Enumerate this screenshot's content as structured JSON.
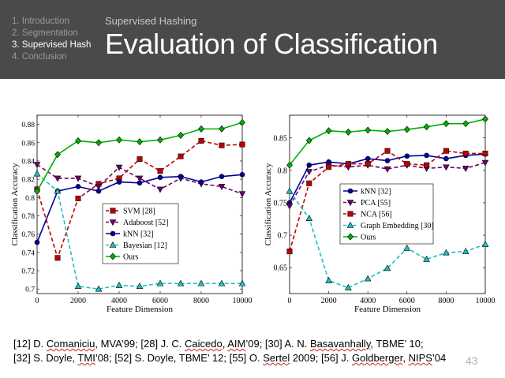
{
  "nav": {
    "items": [
      {
        "num": "1.",
        "label": "Introduction",
        "active": false
      },
      {
        "num": "2.",
        "label": "Segmentation",
        "active": false
      },
      {
        "num": "3.",
        "label": "Supervised Hash",
        "active": true
      },
      {
        "num": "4.",
        "label": "Conclusion",
        "active": false
      }
    ]
  },
  "section_label": "Supervised Hashing",
  "slide_title": "Evaluation of Classification",
  "colors": {
    "header_bg": "#4a4a4a",
    "green": "#00b000",
    "red": "#c00000",
    "purple": "#700070",
    "blue": "#0000a0",
    "cyan": "#20c0c0"
  },
  "chart_data": [
    {
      "type": "line",
      "xlabel": "Feature Dimension",
      "ylabel": "Classification Accuracy",
      "xlim": [
        0,
        10000
      ],
      "ylim": [
        0.695,
        0.89
      ],
      "xticks": [
        "0",
        "2000",
        "4000",
        "6000",
        "8000",
        "10000"
      ],
      "yticks": [
        "0.7",
        "0.72",
        "0.74",
        "0.76",
        "0.78",
        "0.8",
        "0.82",
        "0.84",
        "0.86",
        "0.88"
      ],
      "grid": false,
      "legend_position": "center-right",
      "x": [
        0,
        1000,
        2000,
        3000,
        4000,
        5000,
        6000,
        7000,
        8000,
        9000,
        10000
      ],
      "series": [
        {
          "name": "SVM [28]",
          "values": [
            0.809,
            0.734,
            0.799,
            0.815,
            0.821,
            0.842,
            0.829,
            0.845,
            0.862,
            0.857,
            0.858
          ]
        },
        {
          "name": "Adaboost [52]",
          "values": [
            0.836,
            0.821,
            0.821,
            0.812,
            0.833,
            0.821,
            0.809,
            0.821,
            0.815,
            0.812,
            0.804
          ]
        },
        {
          "name": "kNN [32]",
          "values": [
            0.751,
            0.807,
            0.812,
            0.807,
            0.817,
            0.816,
            0.822,
            0.823,
            0.817,
            0.823,
            0.825
          ]
        },
        {
          "name": "Bayesian [12]",
          "values": [
            0.826,
            0.807,
            0.703,
            0.7,
            0.704,
            0.703,
            0.706,
            0.706,
            0.706,
            0.706,
            0.706
          ]
        },
        {
          "name": "Ours",
          "values": [
            0.807,
            0.847,
            0.862,
            0.86,
            0.863,
            0.861,
            0.863,
            0.868,
            0.875,
            0.875,
            0.882
          ]
        }
      ]
    },
    {
      "type": "line",
      "xlabel": "Feature Dimension",
      "ylabel": "Classification Accuracy",
      "xlim": [
        0,
        10000
      ],
      "ylim": [
        0.61,
        0.885
      ],
      "xticks": [
        "0",
        "2000",
        "4000",
        "6000",
        "8000",
        "10000"
      ],
      "yticks": [
        "0.65",
        "0.7",
        "0.75",
        "0.8",
        "0.85"
      ],
      "grid": false,
      "legend_position": "center",
      "x": [
        0,
        1000,
        2000,
        3000,
        4000,
        5000,
        6000,
        7000,
        8000,
        9000,
        10000
      ],
      "series": [
        {
          "name": "kNN [32]",
          "values": [
            0.75,
            0.808,
            0.813,
            0.81,
            0.818,
            0.815,
            0.822,
            0.823,
            0.818,
            0.823,
            0.825
          ]
        },
        {
          "name": "PCA [55]",
          "values": [
            0.745,
            0.798,
            0.808,
            0.805,
            0.808,
            0.802,
            0.808,
            0.803,
            0.805,
            0.803,
            0.812
          ]
        },
        {
          "name": "NCA [56]",
          "values": [
            0.675,
            0.78,
            0.805,
            0.81,
            0.81,
            0.83,
            0.81,
            0.808,
            0.83,
            0.826,
            0.826
          ]
        },
        {
          "name": "Graph Embedding [30]",
          "values": [
            0.768,
            0.726,
            0.63,
            0.619,
            0.633,
            0.649,
            0.68,
            0.663,
            0.673,
            0.675,
            0.686
          ]
        },
        {
          "name": "Ours",
          "values": [
            0.808,
            0.846,
            0.861,
            0.859,
            0.862,
            0.86,
            0.863,
            0.867,
            0.872,
            0.872,
            0.879
          ]
        }
      ]
    }
  ],
  "references": {
    "line1": [
      {
        "t": "[12] D. ",
        "s": false
      },
      {
        "t": "Comaniciu",
        "s": true
      },
      {
        "t": ", MVA’99; [28] J. C. ",
        "s": false
      },
      {
        "t": "Caicedo",
        "s": true
      },
      {
        "t": ", ",
        "s": false
      },
      {
        "t": "AIM",
        "s": true
      },
      {
        "t": "’09; [30] A. N. ",
        "s": false
      },
      {
        "t": "Basavanhally",
        "s": true
      },
      {
        "t": ", TBME’ 10;",
        "s": false
      }
    ],
    "line2": [
      {
        "t": "[32] S. Doyle, ",
        "s": false
      },
      {
        "t": "TMI",
        "s": true
      },
      {
        "t": "’08; [52] S. Doyle, TBME’ 12; [55] O. ",
        "s": false
      },
      {
        "t": "Sertel",
        "s": true
      },
      {
        "t": " 2009; [56] J. ",
        "s": false
      },
      {
        "t": "Goldberger",
        "s": true
      },
      {
        "t": ", ",
        "s": false
      },
      {
        "t": "NIPS",
        "s": true
      },
      {
        "t": "’04",
        "s": false
      }
    ]
  },
  "page_number": "43"
}
